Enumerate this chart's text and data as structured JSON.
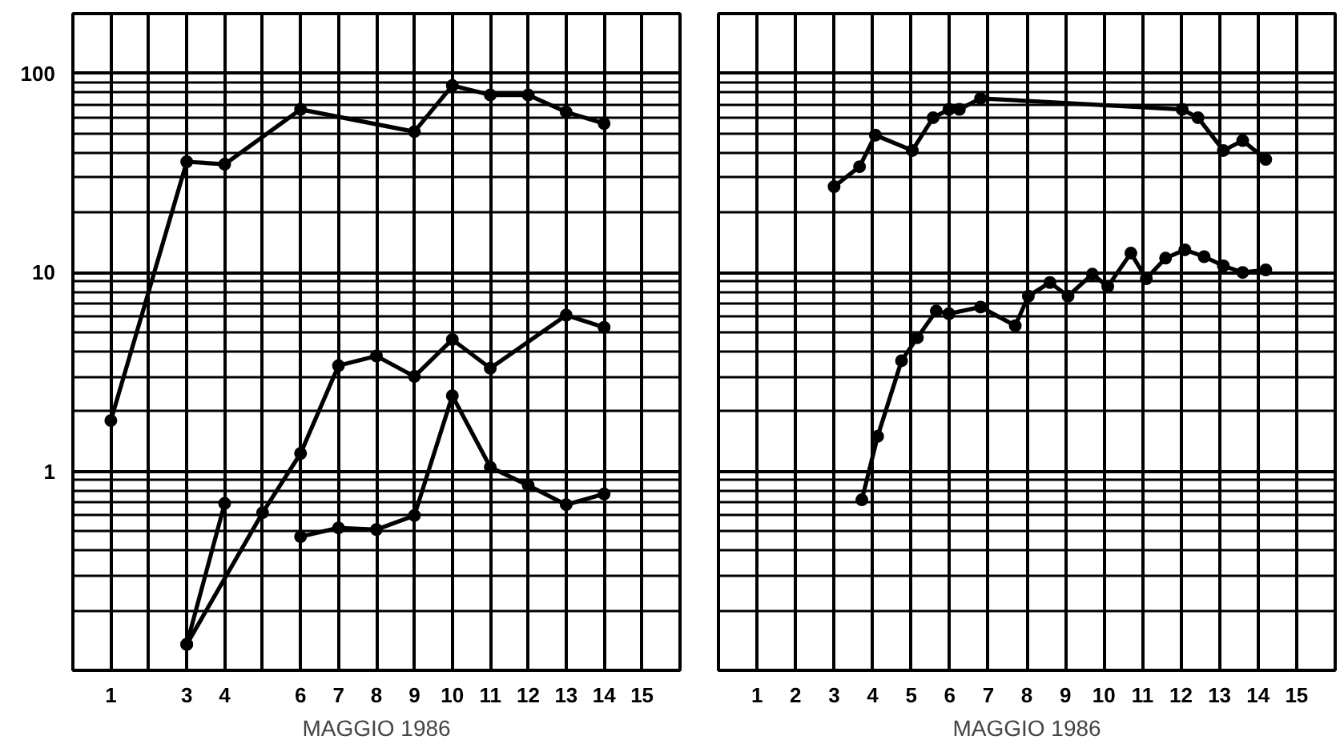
{
  "chart_data": [
    {
      "type": "line",
      "xlabel": "MAGGIO 1986",
      "xlim": [
        0,
        16
      ],
      "ylim": [
        0.1,
        200
      ],
      "log": "y",
      "grid": true,
      "marker": "circle",
      "line_style": "solid",
      "xticks": [
        1,
        {
          "value": 2,
          "label": null
        },
        3,
        4,
        {
          "value": 5,
          "label": null
        },
        6,
        7,
        8,
        9,
        10,
        11,
        12,
        13,
        14,
        15
      ],
      "yticks": [
        1,
        10,
        100
      ],
      "series": [
        {
          "color": "#000000",
          "x": [
            1,
            3,
            4,
            6,
            9,
            10,
            11,
            12,
            13,
            14
          ],
          "values": [
            1.8,
            36,
            35,
            66,
            51,
            87,
            78,
            78,
            64,
            56
          ]
        },
        {
          "color": "#000000",
          "x": [
            3,
            5,
            6,
            7,
            8,
            9,
            10,
            11,
            13,
            14
          ],
          "values": [
            0.135,
            0.62,
            1.23,
            3.4,
            3.8,
            3.0,
            4.6,
            3.3,
            6.1,
            5.3
          ]
        },
        {
          "color": "#000000",
          "x": [
            3,
            4,
            5,
            6,
            7,
            8,
            9,
            10,
            11,
            12,
            13,
            14
          ],
          "values": [
            0.135,
            0.69,
            null,
            0.47,
            0.52,
            0.51,
            0.6,
            2.4,
            1.05,
            0.85,
            0.68,
            0.77
          ]
        }
      ]
    },
    {
      "type": "line",
      "xlabel": "MAGGIO 1986",
      "xlim": [
        0,
        16
      ],
      "ylim": [
        0.1,
        200
      ],
      "log": "y",
      "grid": true,
      "marker": "circle",
      "line_style": "solid",
      "tick_labels": "x",
      "xticks": [
        1,
        2,
        3,
        4,
        5,
        6,
        7,
        8,
        9,
        10,
        11,
        12,
        13,
        14,
        15
      ],
      "yticks": [
        1,
        10,
        100
      ],
      "series": [
        {
          "color": "#000000",
          "x": [
            3,
            3.66,
            4.07,
            5.03,
            5.57,
            5.98,
            6.25,
            6.8,
            12.03,
            12.44,
            13.1,
            13.6,
            14.2
          ],
          "values": [
            27,
            34,
            49,
            41,
            60,
            66,
            66,
            75,
            66,
            60,
            41,
            46,
            37
          ]
        },
        {
          "color": "#000000",
          "x": [
            3.72,
            4.13,
            4.75,
            5.16,
            5.65,
            5.98,
            6.8,
            7.7,
            8.04,
            8.6,
            9.07,
            9.7,
            10.1,
            10.7,
            11.1,
            11.6,
            12.1,
            12.6,
            13.1,
            13.6,
            14.2
          ],
          "values": [
            0.72,
            1.5,
            3.6,
            4.7,
            6.4,
            6.2,
            6.7,
            5.4,
            7.6,
            8.9,
            7.6,
            9.8,
            8.5,
            12.5,
            9.3,
            11.8,
            13,
            12,
            10.8,
            10,
            10.3
          ]
        }
      ]
    }
  ]
}
